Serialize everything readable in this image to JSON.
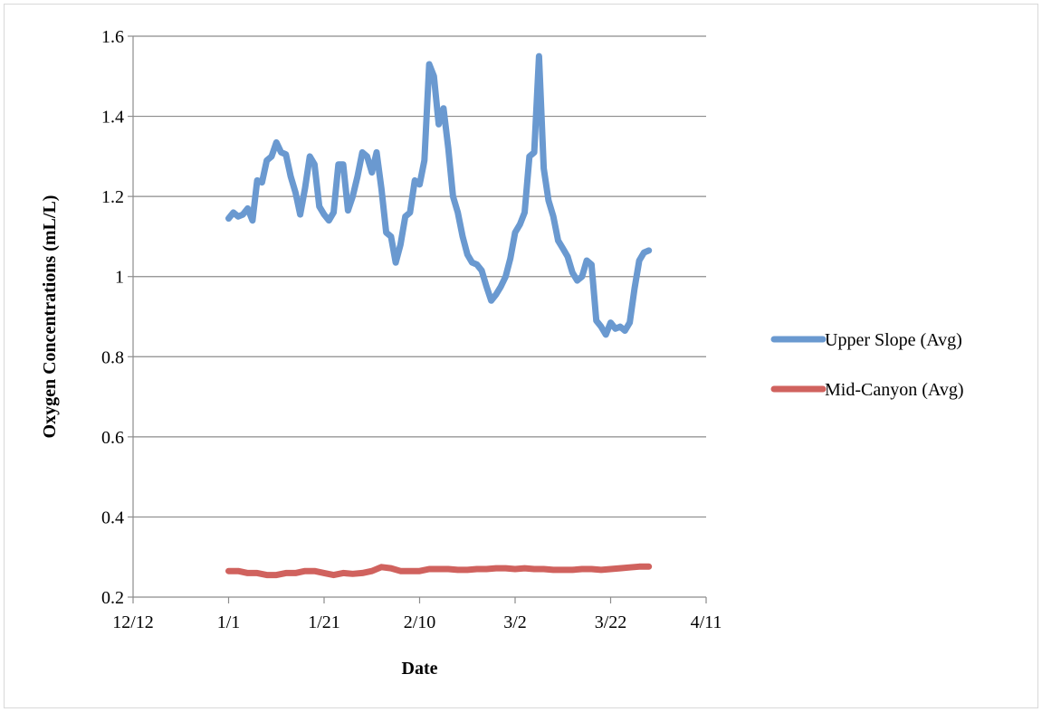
{
  "chart_data": {
    "type": "line",
    "title": "",
    "xlabel": "Date",
    "ylabel": "Oxygen Concentrations (mL/L)",
    "x_ticks": [
      "12/12",
      "1/1",
      "1/21",
      "2/10",
      "3/2",
      "3/22",
      "4/11"
    ],
    "y_ticks": [
      "0.2",
      "0.4",
      "0.6",
      "0.8",
      "1",
      "1.2",
      "1.4",
      "1.6"
    ],
    "ylim": [
      0.2,
      1.6
    ],
    "grid": "horizontal",
    "legend_position": "right",
    "series": [
      {
        "name": "Upper Slope (Avg)",
        "color": "#6a99d0",
        "x": [
          "1/1",
          "1/2",
          "1/3",
          "1/4",
          "1/5",
          "1/6",
          "1/7",
          "1/8",
          "1/9",
          "1/10",
          "1/11",
          "1/12",
          "1/13",
          "1/14",
          "1/15",
          "1/16",
          "1/17",
          "1/18",
          "1/19",
          "1/20",
          "1/21",
          "1/22",
          "1/23",
          "1/24",
          "1/25",
          "1/26",
          "1/27",
          "1/28",
          "1/29",
          "1/30",
          "1/31",
          "2/1",
          "2/2",
          "2/3",
          "2/4",
          "2/5",
          "2/6",
          "2/7",
          "2/8",
          "2/9",
          "2/10",
          "2/11",
          "2/12",
          "2/13",
          "2/14",
          "2/15",
          "2/16",
          "2/17",
          "2/18",
          "2/19",
          "2/20",
          "2/21",
          "2/22",
          "2/23",
          "2/24",
          "2/25",
          "2/26",
          "2/27",
          "2/28",
          "3/1",
          "3/2",
          "3/3",
          "3/4",
          "3/5",
          "3/6",
          "3/7",
          "3/8",
          "3/9",
          "3/10",
          "3/11",
          "3/12",
          "3/13",
          "3/14",
          "3/15",
          "3/16",
          "3/17",
          "3/18",
          "3/19",
          "3/20",
          "3/21",
          "3/22",
          "3/23",
          "3/24",
          "3/25",
          "3/26",
          "3/27",
          "3/28",
          "3/29",
          "3/30"
        ],
        "values": [
          1.145,
          1.16,
          1.15,
          1.155,
          1.17,
          1.14,
          1.24,
          1.235,
          1.29,
          1.3,
          1.335,
          1.31,
          1.305,
          1.25,
          1.21,
          1.155,
          1.22,
          1.3,
          1.28,
          1.175,
          1.155,
          1.14,
          1.16,
          1.28,
          1.28,
          1.165,
          1.2,
          1.25,
          1.31,
          1.3,
          1.26,
          1.31,
          1.22,
          1.11,
          1.1,
          1.035,
          1.08,
          1.15,
          1.16,
          1.24,
          1.23,
          1.29,
          1.53,
          1.5,
          1.38,
          1.42,
          1.32,
          1.2,
          1.16,
          1.1,
          1.055,
          1.035,
          1.03,
          1.015,
          0.975,
          0.94,
          0.955,
          0.975,
          1.0,
          1.045,
          1.11,
          1.13,
          1.16,
          1.3,
          1.31,
          1.55,
          1.27,
          1.19,
          1.15,
          1.09,
          1.07,
          1.05,
          1.01,
          0.99,
          1.0,
          1.04,
          1.03,
          0.89,
          0.875,
          0.855,
          0.885,
          0.87,
          0.875,
          0.865,
          0.885,
          0.97,
          1.04,
          1.06,
          1.065
        ]
      },
      {
        "name": "Mid-Canyon (Avg)",
        "color": "#d0625e",
        "x": [
          "1/1",
          "1/3",
          "1/5",
          "1/7",
          "1/9",
          "1/11",
          "1/13",
          "1/15",
          "1/17",
          "1/19",
          "1/21",
          "1/23",
          "1/25",
          "1/27",
          "1/29",
          "1/31",
          "2/2",
          "2/4",
          "2/6",
          "2/8",
          "2/10",
          "2/12",
          "2/14",
          "2/16",
          "2/18",
          "2/20",
          "2/22",
          "2/24",
          "2/26",
          "2/28",
          "3/2",
          "3/4",
          "3/6",
          "3/8",
          "3/10",
          "3/12",
          "3/14",
          "3/16",
          "3/18",
          "3/20",
          "3/22",
          "3/24",
          "3/26",
          "3/28",
          "3/30"
        ],
        "values": [
          0.265,
          0.265,
          0.26,
          0.26,
          0.255,
          0.255,
          0.26,
          0.26,
          0.265,
          0.265,
          0.26,
          0.255,
          0.26,
          0.258,
          0.26,
          0.265,
          0.275,
          0.272,
          0.265,
          0.265,
          0.265,
          0.27,
          0.27,
          0.27,
          0.268,
          0.268,
          0.27,
          0.27,
          0.272,
          0.272,
          0.27,
          0.272,
          0.27,
          0.27,
          0.268,
          0.268,
          0.268,
          0.27,
          0.27,
          0.268,
          0.27,
          0.272,
          0.274,
          0.276,
          0.276
        ]
      }
    ]
  }
}
